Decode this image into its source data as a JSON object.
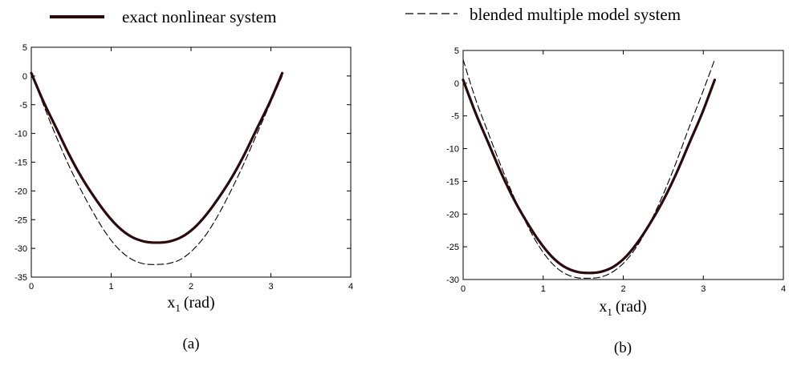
{
  "legend": {
    "items": [
      {
        "label": "exact nonlinear system",
        "style": "solid-thick",
        "color": "#2a0a0a"
      },
      {
        "label": "blended multiple model system",
        "style": "dashed-thin",
        "color": "#000000"
      }
    ]
  },
  "chart_data": [
    {
      "type": "line",
      "caption": "(a)",
      "xlabel": "x",
      "xlabel_sub": "1",
      "xlabel_unit": "(rad)",
      "ylabel": "",
      "xlim": [
        0,
        4
      ],
      "ylim": [
        -35,
        5
      ],
      "xticks": [
        0,
        1,
        2,
        3,
        4
      ],
      "yticks": [
        5,
        0,
        -5,
        -10,
        -15,
        -20,
        -25,
        -30,
        -35
      ],
      "grid": false,
      "series": [
        {
          "name": "exact nonlinear system",
          "style": "solid-thick",
          "x": [
            0,
            0.157,
            0.314,
            0.471,
            0.628,
            0.785,
            0.942,
            1.1,
            1.257,
            1.414,
            1.571,
            1.728,
            1.885,
            2.042,
            2.199,
            2.356,
            2.513,
            2.67,
            2.827,
            2.985,
            3.142
          ],
          "y": [
            0.5,
            -4.6,
            -9.1,
            -13.6,
            -17.6,
            -21.0,
            -24.0,
            -26.4,
            -28.0,
            -28.8,
            -29.0,
            -28.8,
            -28.0,
            -26.4,
            -24.0,
            -21.0,
            -17.6,
            -13.6,
            -9.1,
            -4.6,
            0.5
          ]
        },
        {
          "name": "blended multiple model system",
          "style": "dashed-thin",
          "x": [
            0,
            0.157,
            0.314,
            0.471,
            0.628,
            0.785,
            0.942,
            1.1,
            1.257,
            1.414,
            1.571,
            1.728,
            1.885,
            2.042,
            2.199,
            2.356,
            2.513,
            2.67,
            2.827,
            2.985,
            3.142
          ],
          "y": [
            0.5,
            -5.2,
            -10.6,
            -15.6,
            -20.0,
            -24.0,
            -27.5,
            -30.2,
            -31.9,
            -32.7,
            -32.8,
            -32.6,
            -31.8,
            -30.0,
            -27.4,
            -23.8,
            -19.6,
            -15.0,
            -10.0,
            -5.0,
            0.0
          ]
        }
      ]
    },
    {
      "type": "line",
      "caption": "(b)",
      "xlabel": "x",
      "xlabel_sub": "1",
      "xlabel_unit": "(rad)",
      "ylabel": "",
      "xlim": [
        0,
        4
      ],
      "ylim": [
        -30,
        5
      ],
      "xticks": [
        0,
        1,
        2,
        3,
        4
      ],
      "yticks": [
        5,
        0,
        -5,
        -10,
        -15,
        -20,
        -25,
        -30
      ],
      "grid": false,
      "series": [
        {
          "name": "exact nonlinear system",
          "style": "solid-thick",
          "x": [
            0,
            0.157,
            0.314,
            0.471,
            0.628,
            0.785,
            0.942,
            1.1,
            1.257,
            1.414,
            1.571,
            1.728,
            1.885,
            2.042,
            2.199,
            2.356,
            2.513,
            2.67,
            2.827,
            2.985,
            3.142
          ],
          "y": [
            0.5,
            -4.6,
            -9.1,
            -13.6,
            -17.6,
            -21.0,
            -24.0,
            -26.4,
            -28.0,
            -28.8,
            -29.0,
            -28.8,
            -28.0,
            -26.4,
            -24.0,
            -21.0,
            -17.6,
            -13.6,
            -9.1,
            -4.6,
            0.5
          ]
        },
        {
          "name": "blended multiple model system",
          "style": "dashed-thin",
          "x": [
            0,
            0.157,
            0.314,
            0.471,
            0.628,
            0.785,
            0.942,
            1.1,
            1.257,
            1.414,
            1.571,
            1.728,
            1.885,
            2.042,
            2.199,
            2.356,
            2.513,
            2.67,
            2.827,
            2.985,
            3.142
          ],
          "y": [
            3.6,
            -2.5,
            -7.6,
            -12.6,
            -17.2,
            -21.3,
            -24.8,
            -27.4,
            -29.0,
            -29.7,
            -29.8,
            -29.6,
            -28.7,
            -27.0,
            -24.4,
            -20.8,
            -16.6,
            -11.8,
            -6.6,
            -1.6,
            3.6
          ]
        }
      ]
    }
  ]
}
